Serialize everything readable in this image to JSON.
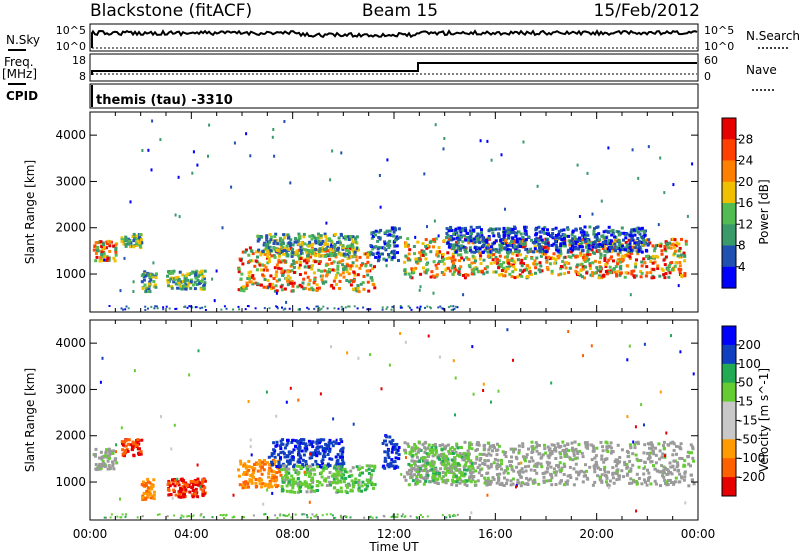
{
  "header": {
    "station": "Blackstone (fitACF)",
    "beam": "Beam 15",
    "date": "15/Feb/2012"
  },
  "left_labels": {
    "nsky": "N.Sky",
    "freq": "Freq.",
    "mhz": "[MHz]",
    "cpid": "CPID"
  },
  "right_labels": {
    "nsearch": "N.Search",
    "nave": "Nave"
  },
  "noise_axis_labels": {
    "left_top": "10^5",
    "left_bottom": "10^0",
    "right_top": "10^5",
    "right_bottom": "10^0"
  },
  "freq_axis_labels": {
    "left_top": "18",
    "left_bottom": "8",
    "right_top": "60",
    "right_bottom": "0"
  },
  "cpid_text": "themis (tau) -3310",
  "colors": {
    "power": [
      "#0000ff",
      "#2050b0",
      "#3a9a6a",
      "#52bb52",
      "#f0c000",
      "#ff8000",
      "#ff4000",
      "#e60000"
    ],
    "velocity": [
      "#e60000",
      "#ff6000",
      "#ff9a00",
      "#c8c8c8",
      "#c8c8c8",
      "#66cc33",
      "#22aa55",
      "#1040c0",
      "#0000ff"
    ],
    "ground": "#9a9a9a"
  },
  "chart_data": [
    {
      "type": "heatmap",
      "panel": "power",
      "ylabel": "Slant Range [km]",
      "yticks": [
        "1000",
        "2000",
        "3000",
        "4000"
      ],
      "ylim": [
        180,
        4500
      ],
      "xlim_hours": [
        0,
        24
      ],
      "colorbar": {
        "label": "Power [dB]",
        "ticks": [
          "4",
          "8",
          "12",
          "16",
          "20",
          "24",
          "28"
        ],
        "range": [
          0,
          32
        ]
      },
      "scatter_bands": [
        {
          "t": [
            0.1,
            1.0
          ],
          "range": [
            1300,
            1750
          ],
          "level": "high"
        },
        {
          "t": [
            1.2,
            2.0
          ],
          "range": [
            1600,
            1900
          ],
          "level": "med"
        },
        {
          "t": [
            2.0,
            2.6
          ],
          "range": [
            650,
            1100
          ],
          "level": "med"
        },
        {
          "t": [
            3.0,
            4.5
          ],
          "range": [
            700,
            1100
          ],
          "level": "med"
        },
        {
          "t": [
            5.8,
            11.2
          ],
          "range": [
            650,
            1600
          ],
          "level": "high"
        },
        {
          "t": [
            6.5,
            10.5
          ],
          "range": [
            1400,
            1900
          ],
          "level": "med"
        },
        {
          "t": [
            11.0,
            12.2
          ],
          "range": [
            1300,
            2050
          ],
          "level": "low"
        },
        {
          "t": [
            12.3,
            23.5
          ],
          "range": [
            950,
            1800
          ],
          "level": "high"
        },
        {
          "t": [
            14.0,
            22.0
          ],
          "range": [
            1500,
            2050
          ],
          "level": "low"
        }
      ]
    },
    {
      "type": "heatmap",
      "panel": "velocity",
      "ylabel": "Slant Range [km]",
      "yticks": [
        "1000",
        "2000",
        "3000",
        "4000"
      ],
      "ylim": [
        180,
        4500
      ],
      "xlim_hours": [
        0,
        24
      ],
      "xticks": [
        "00:00",
        "04:00",
        "08:00",
        "12:00",
        "16:00",
        "20:00",
        "00:00"
      ],
      "xlabel": "Time UT",
      "colorbar": {
        "label": "Velocity [m s^-1]",
        "ticks": [
          "200",
          "100",
          "50",
          "15",
          "-15",
          "-50",
          "-100",
          "-200"
        ],
        "range": [
          -250,
          250
        ]
      },
      "scatter_bands": [
        {
          "t": [
            0.1,
            1.0
          ],
          "range": [
            1300,
            1750
          ],
          "vel": "ground"
        },
        {
          "t": [
            1.2,
            2.0
          ],
          "range": [
            1600,
            1950
          ],
          "vel": "neg_fast"
        },
        {
          "t": [
            2.0,
            2.6
          ],
          "range": [
            650,
            1100
          ],
          "vel": "neg_med"
        },
        {
          "t": [
            3.0,
            4.5
          ],
          "range": [
            700,
            1100
          ],
          "vel": "neg_fast"
        },
        {
          "t": [
            5.8,
            7.5
          ],
          "range": [
            900,
            1500
          ],
          "vel": "neg_med"
        },
        {
          "t": [
            7.0,
            10.0
          ],
          "range": [
            1350,
            1950
          ],
          "vel": "pos_fast"
        },
        {
          "t": [
            7.5,
            11.2
          ],
          "range": [
            800,
            1400
          ],
          "vel": "pos_slow"
        },
        {
          "t": [
            11.5,
            12.2
          ],
          "range": [
            1300,
            2050
          ],
          "vel": "pos_fast"
        },
        {
          "t": [
            12.3,
            23.8
          ],
          "range": [
            950,
            1900
          ],
          "vel": "ground"
        },
        {
          "t": [
            12.5,
            15.0
          ],
          "range": [
            1000,
            1800
          ],
          "vel": "pos_slow"
        }
      ]
    }
  ]
}
